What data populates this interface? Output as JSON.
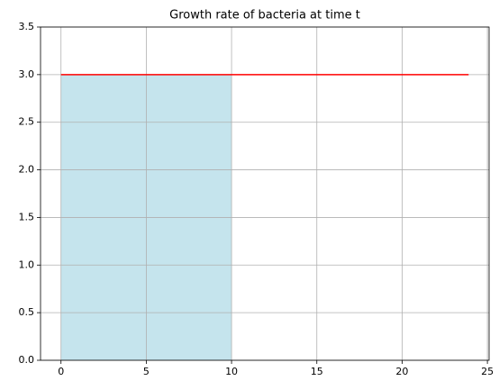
{
  "chart_data": {
    "type": "line",
    "title": "Growth rate of bacteria at time t",
    "series": [
      {
        "kind": "area",
        "color": "#add8e6",
        "opacity": 0.7,
        "x": [
          0,
          10
        ],
        "values": [
          3,
          3
        ]
      },
      {
        "kind": "line",
        "color": "#ff0000",
        "x": [
          0,
          23.9
        ],
        "values": [
          3,
          3
        ]
      }
    ],
    "xlim": [
      -1.2,
      25.1
    ],
    "xticks": [
      0,
      5,
      10,
      15,
      20,
      25
    ],
    "ylim": [
      0,
      3.5
    ],
    "yticks": [
      {
        "value": 0,
        "label": "0.0"
      },
      {
        "value": 0.5,
        "label": "0.5"
      },
      {
        "value": 1,
        "label": "1.0"
      },
      {
        "value": 1.5,
        "label": "1.5"
      },
      {
        "value": 2,
        "label": "2.0"
      },
      {
        "value": 2.5,
        "label": "2.5"
      },
      {
        "value": 3,
        "label": "3.0"
      },
      {
        "value": 3.5,
        "label": "3.5"
      }
    ],
    "grid": true
  }
}
